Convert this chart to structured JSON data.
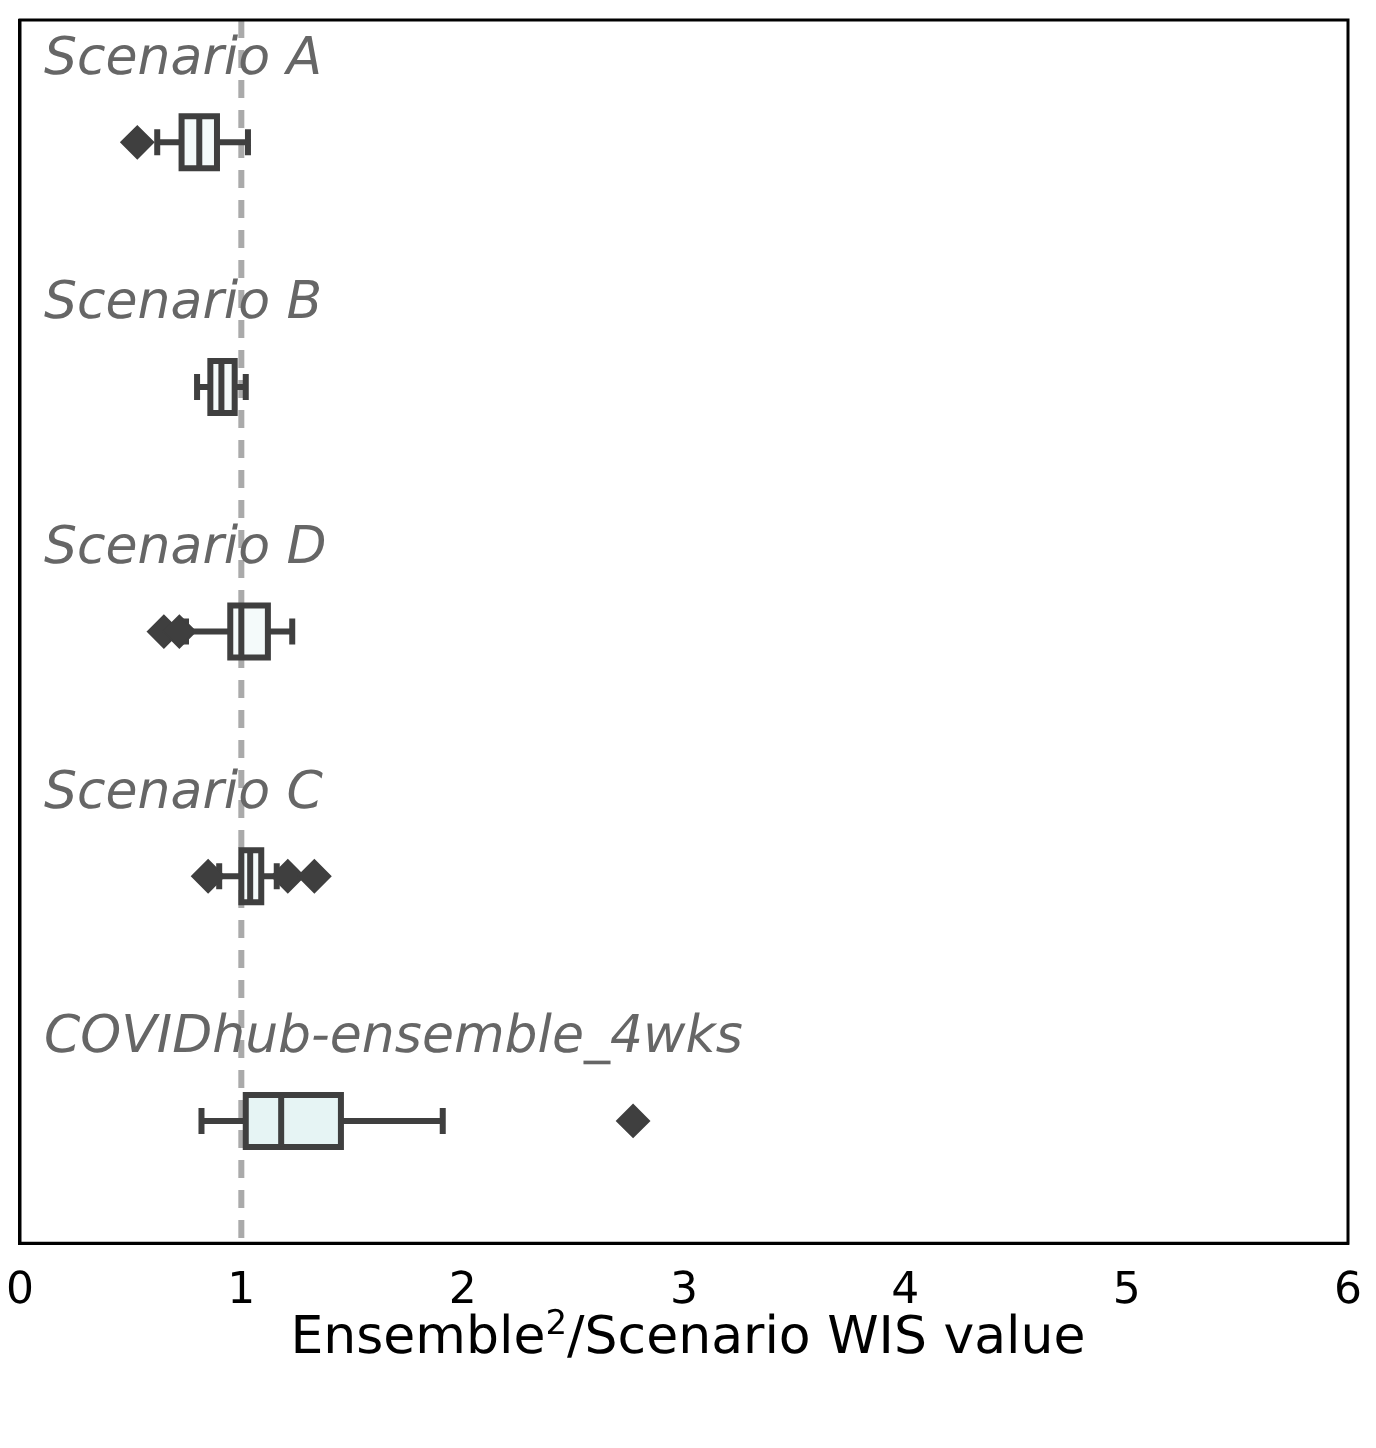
{
  "chart_data": {
    "type": "box",
    "orientation": "horizontal",
    "xlabel": "Ensemble$^{2}$/Scenario WIS value",
    "categories": [
      "Scenario A",
      "Scenario B",
      "Scenario D",
      "Scenario C",
      "COVIDhub-ensemble_4wks"
    ],
    "colors": [
      "#f4fafa",
      "#f4fafa",
      "#f4fafa",
      "#f4fafa",
      "#e6f4f4"
    ],
    "boxes": [
      {
        "low": 0.62,
        "q1": 0.73,
        "median": 0.81,
        "q3": 0.89,
        "high": 1.03,
        "outliers": [
          0.53
        ]
      },
      {
        "low": 0.8,
        "q1": 0.86,
        "median": 0.91,
        "q3": 0.97,
        "high": 1.02
      },
      {
        "low": 0.75,
        "q1": 0.95,
        "median": 1.0,
        "q3": 1.12,
        "high": 1.23,
        "outliers": [
          0.65,
          0.72
        ]
      },
      {
        "low": 0.9,
        "q1": 1.0,
        "median": 1.04,
        "q3": 1.09,
        "high": 1.16,
        "outliers": [
          0.85,
          1.21,
          1.33
        ]
      },
      {
        "low": 0.82,
        "q1": 1.02,
        "median": 1.18,
        "q3": 1.45,
        "high": 1.91,
        "outliers": [
          2.77
        ]
      }
    ],
    "xlim": [
      0,
      6
    ],
    "xticks": [
      0,
      1,
      2,
      3,
      4,
      5,
      6
    ],
    "ref_lines": [
      {
        "axis": "x",
        "value": 1,
        "color": "#aaaaaa",
        "line_style": "dashed"
      }
    ],
    "tick_labels": "x",
    "grid": false,
    "legend": false
  }
}
